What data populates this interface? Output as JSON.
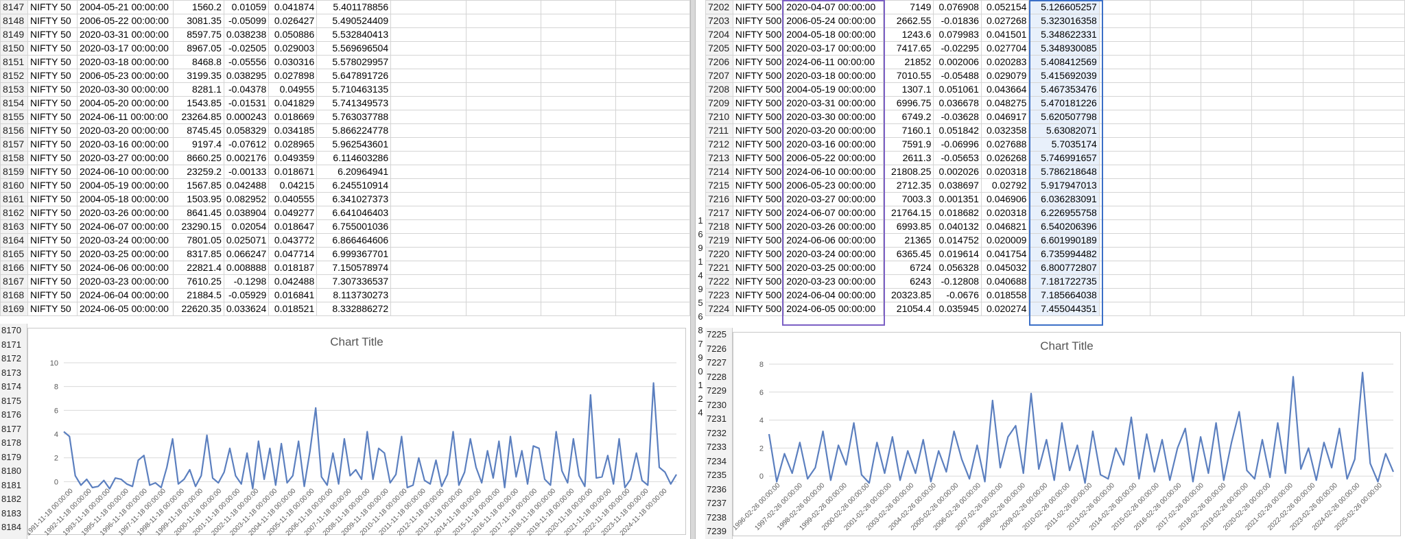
{
  "left": {
    "rows": [
      {
        "r": "8147",
        "idx": "NIFTY 50",
        "date": "2004-05-21 00:00:00",
        "close": "1560.2",
        "ret": "0.01059",
        "vol": "0.041874",
        "z": "5.401178856"
      },
      {
        "r": "8148",
        "idx": "NIFTY 50",
        "date": "2006-05-22 00:00:00",
        "close": "3081.35",
        "ret": "-0.05099",
        "vol": "0.026427",
        "z": "5.490524409"
      },
      {
        "r": "8149",
        "idx": "NIFTY 50",
        "date": "2020-03-31 00:00:00",
        "close": "8597.75",
        "ret": "0.038238",
        "vol": "0.050886",
        "z": "5.532840413"
      },
      {
        "r": "8150",
        "idx": "NIFTY 50",
        "date": "2020-03-17 00:00:00",
        "close": "8967.05",
        "ret": "-0.02505",
        "vol": "0.029003",
        "z": "5.569696504"
      },
      {
        "r": "8151",
        "idx": "NIFTY 50",
        "date": "2020-03-18 00:00:00",
        "close": "8468.8",
        "ret": "-0.05556",
        "vol": "0.030316",
        "z": "5.578029957"
      },
      {
        "r": "8152",
        "idx": "NIFTY 50",
        "date": "2006-05-23 00:00:00",
        "close": "3199.35",
        "ret": "0.038295",
        "vol": "0.027898",
        "z": "5.647891726"
      },
      {
        "r": "8153",
        "idx": "NIFTY 50",
        "date": "2020-03-30 00:00:00",
        "close": "8281.1",
        "ret": "-0.04378",
        "vol": "0.04955",
        "z": "5.710463135"
      },
      {
        "r": "8154",
        "idx": "NIFTY 50",
        "date": "2004-05-20 00:00:00",
        "close": "1543.85",
        "ret": "-0.01531",
        "vol": "0.041829",
        "z": "5.741349573"
      },
      {
        "r": "8155",
        "idx": "NIFTY 50",
        "date": "2024-06-11 00:00:00",
        "close": "23264.85",
        "ret": "0.000243",
        "vol": "0.018669",
        "z": "5.763037788"
      },
      {
        "r": "8156",
        "idx": "NIFTY 50",
        "date": "2020-03-20 00:00:00",
        "close": "8745.45",
        "ret": "0.058329",
        "vol": "0.034185",
        "z": "5.866224778"
      },
      {
        "r": "8157",
        "idx": "NIFTY 50",
        "date": "2020-03-16 00:00:00",
        "close": "9197.4",
        "ret": "-0.07612",
        "vol": "0.028965",
        "z": "5.962543601"
      },
      {
        "r": "8158",
        "idx": "NIFTY 50",
        "date": "2020-03-27 00:00:00",
        "close": "8660.25",
        "ret": "0.002176",
        "vol": "0.049359",
        "z": "6.114603286"
      },
      {
        "r": "8159",
        "idx": "NIFTY 50",
        "date": "2024-06-10 00:00:00",
        "close": "23259.2",
        "ret": "-0.00133",
        "vol": "0.018671",
        "z": "6.20964941"
      },
      {
        "r": "8160",
        "idx": "NIFTY 50",
        "date": "2004-05-19 00:00:00",
        "close": "1567.85",
        "ret": "0.042488",
        "vol": "0.04215",
        "z": "6.245510914"
      },
      {
        "r": "8161",
        "idx": "NIFTY 50",
        "date": "2004-05-18 00:00:00",
        "close": "1503.95",
        "ret": "0.082952",
        "vol": "0.040555",
        "z": "6.341027373"
      },
      {
        "r": "8162",
        "idx": "NIFTY 50",
        "date": "2020-03-26 00:00:00",
        "close": "8641.45",
        "ret": "0.038904",
        "vol": "0.049277",
        "z": "6.641046403"
      },
      {
        "r": "8163",
        "idx": "NIFTY 50",
        "date": "2024-06-07 00:00:00",
        "close": "23290.15",
        "ret": "0.02054",
        "vol": "0.018647",
        "z": "6.755001036"
      },
      {
        "r": "8164",
        "idx": "NIFTY 50",
        "date": "2020-03-24 00:00:00",
        "close": "7801.05",
        "ret": "0.025071",
        "vol": "0.043772",
        "z": "6.866464606"
      },
      {
        "r": "8165",
        "idx": "NIFTY 50",
        "date": "2020-03-25 00:00:00",
        "close": "8317.85",
        "ret": "0.066247",
        "vol": "0.047714",
        "z": "6.999367701"
      },
      {
        "r": "8166",
        "idx": "NIFTY 50",
        "date": "2024-06-06 00:00:00",
        "close": "22821.4",
        "ret": "0.008888",
        "vol": "0.018187",
        "z": "7.150578974"
      },
      {
        "r": "8167",
        "idx": "NIFTY 50",
        "date": "2020-03-23 00:00:00",
        "close": "7610.25",
        "ret": "-0.1298",
        "vol": "0.042488",
        "z": "7.307336537"
      },
      {
        "r": "8168",
        "idx": "NIFTY 50",
        "date": "2024-06-04 00:00:00",
        "close": "21884.5",
        "ret": "-0.05929",
        "vol": "0.016841",
        "z": "8.113730273"
      },
      {
        "r": "8169",
        "idx": "NIFTY 50",
        "date": "2024-06-05 00:00:00",
        "close": "22620.35",
        "ret": "0.033624",
        "vol": "0.018521",
        "z": "8.332886272"
      }
    ],
    "chart_rows": [
      "8170",
      "8171",
      "8172",
      "8173",
      "8174",
      "8175",
      "8176",
      "8177",
      "8178",
      "8179",
      "8180",
      "8181",
      "8182",
      "8183",
      "8184"
    ]
  },
  "right": {
    "rows": [
      {
        "r": "7202",
        "idx": "NIFTY 500",
        "date": "2020-04-07 00:00:00",
        "close": "7149",
        "ret": "0.076908",
        "vol": "0.052154",
        "z": "5.126605257"
      },
      {
        "r": "7203",
        "idx": "NIFTY 500",
        "date": "2006-05-24 00:00:00",
        "close": "2662.55",
        "ret": "-0.01836",
        "vol": "0.027268",
        "z": "5.323016358"
      },
      {
        "r": "7204",
        "idx": "NIFTY 500",
        "date": "2004-05-18 00:00:00",
        "close": "1243.6",
        "ret": "0.079983",
        "vol": "0.041501",
        "z": "5.348622331"
      },
      {
        "r": "7205",
        "idx": "NIFTY 500",
        "date": "2020-03-17 00:00:00",
        "close": "7417.65",
        "ret": "-0.02295",
        "vol": "0.027704",
        "z": "5.348930085"
      },
      {
        "r": "7206",
        "idx": "NIFTY 500",
        "date": "2024-06-11 00:00:00",
        "close": "21852",
        "ret": "0.002006",
        "vol": "0.020283",
        "z": "5.408412569"
      },
      {
        "r": "7207",
        "idx": "NIFTY 500",
        "date": "2020-03-18 00:00:00",
        "close": "7010.55",
        "ret": "-0.05488",
        "vol": "0.029079",
        "z": "5.415692039"
      },
      {
        "r": "7208",
        "idx": "NIFTY 500",
        "date": "2004-05-19 00:00:00",
        "close": "1307.1",
        "ret": "0.051061",
        "vol": "0.043664",
        "z": "5.467353476"
      },
      {
        "r": "7209",
        "idx": "NIFTY 500",
        "date": "2020-03-31 00:00:00",
        "close": "6996.75",
        "ret": "0.036678",
        "vol": "0.048275",
        "z": "5.470181226"
      },
      {
        "r": "7210",
        "idx": "NIFTY 500",
        "date": "2020-03-30 00:00:00",
        "close": "6749.2",
        "ret": "-0.03628",
        "vol": "0.046917",
        "z": "5.620507798"
      },
      {
        "r": "7211",
        "idx": "NIFTY 500",
        "date": "2020-03-20 00:00:00",
        "close": "7160.1",
        "ret": "0.051842",
        "vol": "0.032358",
        "z": "5.63082071"
      },
      {
        "r": "7212",
        "idx": "NIFTY 500",
        "date": "2020-03-16 00:00:00",
        "close": "7591.9",
        "ret": "-0.06996",
        "vol": "0.027688",
        "z": "5.7035174"
      },
      {
        "r": "7213",
        "idx": "NIFTY 500",
        "date": "2006-05-22 00:00:00",
        "close": "2611.3",
        "ret": "-0.05653",
        "vol": "0.026268",
        "z": "5.746991657"
      },
      {
        "r": "7214",
        "idx": "NIFTY 500",
        "date": "2024-06-10 00:00:00",
        "close": "21808.25",
        "ret": "0.002026",
        "vol": "0.020318",
        "z": "5.786218648"
      },
      {
        "r": "7215",
        "idx": "NIFTY 500",
        "date": "2006-05-23 00:00:00",
        "close": "2712.35",
        "ret": "0.038697",
        "vol": "0.02792",
        "z": "5.917947013"
      },
      {
        "r": "7216",
        "idx": "NIFTY 500",
        "date": "2020-03-27 00:00:00",
        "close": "7003.3",
        "ret": "0.001351",
        "vol": "0.046906",
        "z": "6.036283091"
      },
      {
        "r": "7217",
        "idx": "NIFTY 500",
        "date": "2024-06-07 00:00:00",
        "close": "21764.15",
        "ret": "0.018682",
        "vol": "0.020318",
        "z": "6.226955758"
      },
      {
        "r": "7218",
        "idx": "NIFTY 500",
        "date": "2020-03-26 00:00:00",
        "close": "6993.85",
        "ret": "0.040132",
        "vol": "0.046821",
        "z": "6.540206396"
      },
      {
        "r": "7219",
        "idx": "NIFTY 500",
        "date": "2024-06-06 00:00:00",
        "close": "21365",
        "ret": "0.014752",
        "vol": "0.020009",
        "z": "6.601990189"
      },
      {
        "r": "7220",
        "idx": "NIFTY 500",
        "date": "2020-03-24 00:00:00",
        "close": "6365.45",
        "ret": "0.019614",
        "vol": "0.041754",
        "z": "6.735994482"
      },
      {
        "r": "7221",
        "idx": "NIFTY 500",
        "date": "2020-03-25 00:00:00",
        "close": "6724",
        "ret": "0.056328",
        "vol": "0.045032",
        "z": "6.800772807"
      },
      {
        "r": "7222",
        "idx": "NIFTY 500",
        "date": "2020-03-23 00:00:00",
        "close": "6243",
        "ret": "-0.12808",
        "vol": "0.040688",
        "z": "7.181722735"
      },
      {
        "r": "7223",
        "idx": "NIFTY 500",
        "date": "2024-06-04 00:00:00",
        "close": "20323.85",
        "ret": "-0.0676",
        "vol": "0.018558",
        "z": "7.185664038"
      },
      {
        "r": "7224",
        "idx": "NIFTY 500",
        "date": "2024-06-05 00:00:00",
        "close": "21054.4",
        "ret": "0.035945",
        "vol": "0.020274",
        "z": "7.455044351"
      }
    ],
    "chart_rows": [
      "7225",
      "7226",
      "7227",
      "7228",
      "7229",
      "7230",
      "7231",
      "7232",
      "7233",
      "7234",
      "7235",
      "7236",
      "7237",
      "7238",
      "7239"
    ],
    "gutter_digits": [
      "1",
      "6",
      "9",
      "1",
      "4",
      "9",
      "5",
      "6",
      "8",
      "7",
      "9",
      "0",
      "1",
      "2",
      "4"
    ]
  },
  "chart_data": [
    {
      "type": "line",
      "title": "Chart Title",
      "ylim": [
        -2,
        10
      ],
      "yticks": [
        "0",
        "2",
        "4",
        "6",
        "8",
        "10"
      ],
      "grid": true,
      "color": "#5b7fbf",
      "xtick_labels": [
        "1991-11-18 00:00:00",
        "1992-11-18 00:00:00",
        "1993-11-18 00:00:00",
        "1995-11-18 00:00:00",
        "1996-11-18 00:00:00",
        "1997-11-18 00:00:00",
        "1998-11-18 00:00:00",
        "1999-11-18 00:00:00",
        "2000-11-18 00:00:00",
        "2001-11-18 00:00:00",
        "2002-11-18 00:00:00",
        "2003-11-18 00:00:00",
        "2004-11-18 00:00:00",
        "2005-11-18 00:00:00",
        "2006-11-18 00:00:00",
        "2007-11-18 00:00:00",
        "2008-11-18 00:00:00",
        "2009-11-18 00:00:00",
        "2010-11-18 00:00:00",
        "2011-11-18 00:00:00",
        "2012-11-18 00:00:00",
        "2013-11-18 00:00:00",
        "2014-11-18 00:00:00",
        "2015-11-18 00:00:00",
        "2016-11-18 00:00:00",
        "2017-11-18 00:00:00",
        "2018-11-18 00:00:00",
        "2019-11-18 00:00:00",
        "2020-11-18 00:00:00",
        "2021-11-18 00:00:00",
        "2022-11-18 00:00:00",
        "2023-11-18 00:00:00",
        "2024-11-18 00:00:00"
      ],
      "series": [
        {
          "values": [
            4.2,
            3.8,
            0.5,
            -0.3,
            0.2,
            -0.5,
            -0.4,
            0.1,
            -0.6,
            0.3,
            0.2,
            -0.2,
            -0.4,
            1.8,
            2.2,
            -0.3,
            -0.1,
            -0.5,
            1.2,
            3.6,
            -0.2,
            0.2,
            1.0,
            -0.4,
            0.5,
            3.9,
            0.3,
            -0.1,
            0.8,
            2.8,
            0.5,
            -0.2,
            2.4,
            -0.6,
            3.4,
            0.2,
            2.8,
            -0.3,
            3.2,
            -0.1,
            0.5,
            3.4,
            -0.4,
            2.6,
            6.2,
            0.4,
            -0.3,
            2.4,
            -0.2,
            3.6,
            0.5,
            1.0,
            0.2,
            4.2,
            0.2,
            2.8,
            2.4,
            -0.1,
            0.6,
            3.8,
            -0.5,
            -0.3,
            2.0,
            0.1,
            -0.2,
            1.8,
            -0.4,
            0.6,
            4.2,
            -0.3,
            0.8,
            3.6,
            1.2,
            -0.1,
            2.6,
            0.3,
            3.4,
            -0.5,
            3.8,
            0.4,
            2.6,
            -0.2,
            3.0,
            2.8,
            0.2,
            -0.3,
            4.2,
            0.9,
            -0.1,
            3.6,
            0.5,
            -0.4,
            7.3,
            0.3,
            0.4,
            2.2,
            -0.2,
            3.6,
            -0.5,
            0.2,
            2.4,
            0.1,
            -0.3,
            8.3,
            1.2,
            0.8,
            -0.2,
            0.6
          ]
        }
      ]
    },
    {
      "type": "line",
      "title": "Chart Title",
      "ylim": [
        -2,
        8
      ],
      "yticks": [
        "0",
        "2",
        "4",
        "6",
        "8"
      ],
      "grid": true,
      "color": "#5b7fbf",
      "xtick_labels": [
        "1996-02-26 00:00:00",
        "1997-02-26 00:00:00",
        "1998-02-26 00:00:00",
        "1999-02-26 00:00:00",
        "2000-02-26 00:00:00",
        "2001-02-26 00:00:00",
        "2003-02-26 00:00:00",
        "2004-02-26 00:00:00",
        "2005-02-26 00:00:00",
        "2006-02-26 00:00:00",
        "2007-02-26 00:00:00",
        "2008-02-26 00:00:00",
        "2009-02-26 00:00:00",
        "2010-02-26 00:00:00",
        "2011-02-26 00:00:00",
        "2013-02-26 00:00:00",
        "2014-02-26 00:00:00",
        "2015-02-26 00:00:00",
        "2016-02-26 00:00:00",
        "2017-02-26 00:00:00",
        "2018-02-26 00:00:00",
        "2019-02-26 00:00:00",
        "2020-02-26 00:00:00",
        "2021-02-26 00:00:00",
        "2022-02-26 00:00:00",
        "2023-02-26 00:00:00",
        "2024-02-26 00:00:00",
        "2025-02-26 00:00:00"
      ],
      "series": [
        {
          "values": [
            3.0,
            -0.4,
            1.6,
            0.2,
            2.4,
            -0.2,
            0.6,
            3.2,
            -0.3,
            2.2,
            0.8,
            3.8,
            0.1,
            -0.5,
            2.4,
            0.2,
            2.8,
            -0.3,
            1.8,
            0.2,
            2.6,
            -0.4,
            1.8,
            0.3,
            3.2,
            1.2,
            -0.2,
            2.2,
            -0.4,
            5.4,
            0.6,
            2.8,
            3.6,
            0.2,
            5.9,
            0.5,
            2.6,
            -0.3,
            3.8,
            0.4,
            2.2,
            -0.5,
            3.2,
            0.1,
            -0.2,
            2.0,
            0.8,
            4.2,
            -0.2,
            3.0,
            0.3,
            2.6,
            -0.3,
            2.0,
            3.4,
            -0.4,
            2.8,
            0.2,
            3.8,
            -0.3,
            2.4,
            4.6,
            0.4,
            -0.2,
            2.6,
            -0.1,
            3.8,
            0.2,
            7.1,
            0.5,
            2.0,
            -0.3,
            2.4,
            0.6,
            3.4,
            -0.2,
            1.2,
            7.4,
            0.9,
            -0.4,
            1.6,
            0.3
          ]
        }
      ]
    }
  ]
}
